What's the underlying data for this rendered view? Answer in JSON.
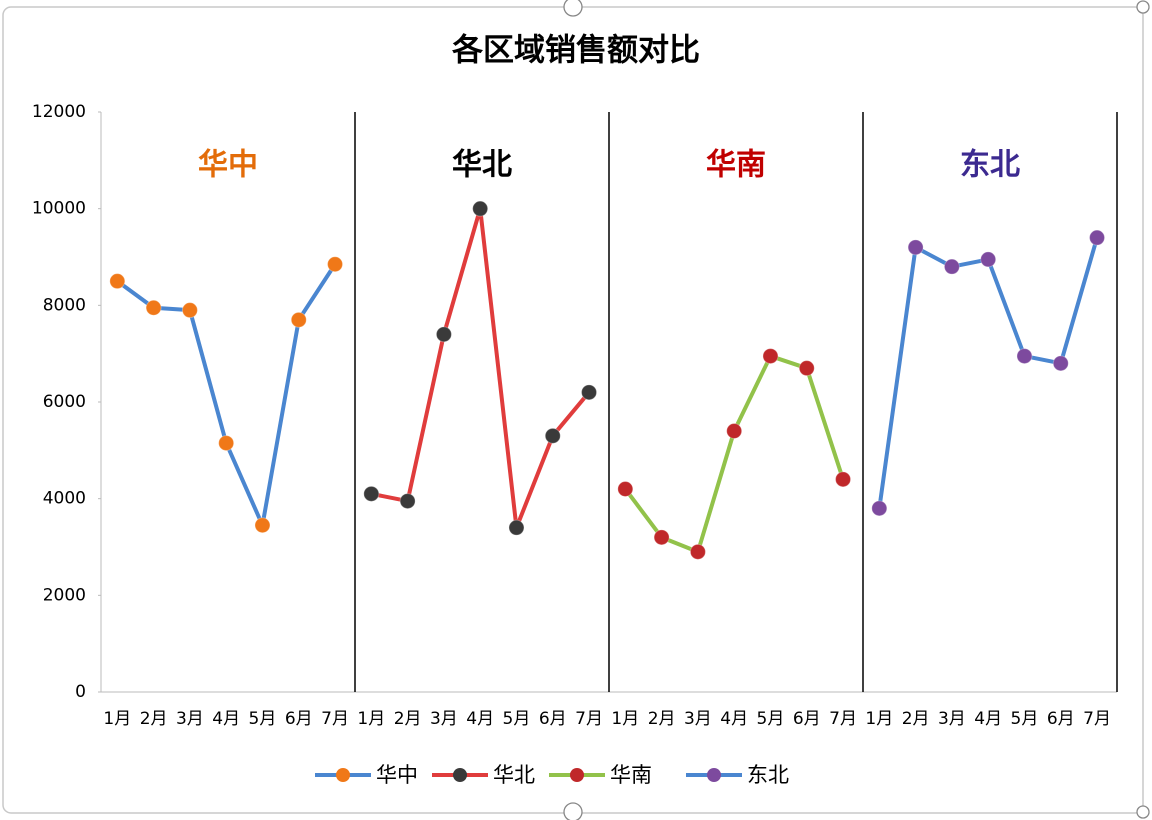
{
  "chart_data": {
    "type": "line",
    "title": "各区域销售额对比",
    "categories": [
      "1月",
      "2月",
      "3月",
      "4月",
      "5月",
      "6月",
      "7月"
    ],
    "series": [
      {
        "name": "华中",
        "color": "#4a86d0",
        "marker_color": "#f07818",
        "label_color": "#e36c09",
        "values": [
          8500,
          7950,
          7900,
          5150,
          3450,
          7700,
          8850
        ]
      },
      {
        "name": "华北",
        "color": "#e03c3c",
        "marker_color": "#3a3a3a",
        "label_color": "#000000",
        "values": [
          4100,
          3950,
          7400,
          10000,
          3400,
          5300,
          6200
        ]
      },
      {
        "name": "华南",
        "color": "#92c24a",
        "marker_color": "#c0282a",
        "label_color": "#c00000",
        "values": [
          4200,
          3200,
          2900,
          5400,
          6950,
          6700,
          4400
        ]
      },
      {
        "name": "东北",
        "color": "#4a86d0",
        "marker_color": "#7d4a9e",
        "label_color": "#3c2a90",
        "values": [
          3800,
          9200,
          8800,
          8950,
          6950,
          6800,
          9400
        ]
      }
    ],
    "ylim": [
      0,
      12000
    ],
    "yticks": [
      0,
      2000,
      4000,
      6000,
      8000,
      10000,
      12000
    ],
    "grid": false
  }
}
